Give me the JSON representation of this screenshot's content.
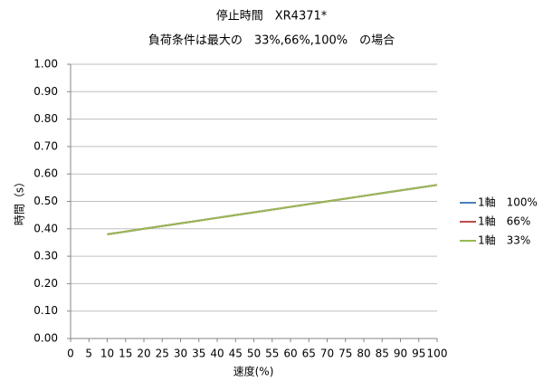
{
  "chart_data": {
    "type": "line",
    "title": "停止時間　XR4371*",
    "subtitle": "負荷条件は最大の　33%,66%,100%　の場合",
    "x_label": "速度(%)",
    "y_label": "時間（s）",
    "x": [
      10,
      15,
      20,
      25,
      30,
      35,
      40,
      45,
      50,
      55,
      60,
      65,
      70,
      75,
      80,
      85,
      90,
      95,
      100
    ],
    "series": [
      {
        "name": "1軸　100%",
        "color": "#4a7ebb",
        "values": [
          0.38,
          0.39,
          0.4,
          0.41,
          0.42,
          0.43,
          0.44,
          0.45,
          0.46,
          0.47,
          0.48,
          0.49,
          0.5,
          0.51,
          0.52,
          0.53,
          0.54,
          0.55,
          0.56
        ]
      },
      {
        "name": "1軸　66%",
        "color": "#be4b48",
        "values": [
          0.38,
          0.39,
          0.4,
          0.41,
          0.42,
          0.43,
          0.44,
          0.45,
          0.46,
          0.47,
          0.48,
          0.49,
          0.5,
          0.51,
          0.52,
          0.53,
          0.54,
          0.55,
          0.56
        ]
      },
      {
        "name": "1軸　33%",
        "color": "#98b954",
        "values": [
          0.38,
          0.39,
          0.4,
          0.41,
          0.42,
          0.43,
          0.44,
          0.45,
          0.46,
          0.47,
          0.48,
          0.49,
          0.5,
          0.51,
          0.52,
          0.53,
          0.54,
          0.55,
          0.56
        ]
      }
    ],
    "xlim": [
      0,
      100
    ],
    "xticks": [
      0,
      5,
      10,
      15,
      20,
      25,
      30,
      35,
      40,
      45,
      50,
      55,
      60,
      65,
      70,
      75,
      80,
      85,
      90,
      95,
      100
    ],
    "ylim": [
      0,
      1
    ],
    "yticks": [
      {
        "value": 0,
        "label": "0.00"
      },
      {
        "value": 0.1,
        "label": "0.10"
      },
      {
        "value": 0.2,
        "label": "0.20"
      },
      {
        "value": 0.3,
        "label": "0.30"
      },
      {
        "value": 0.4,
        "label": "0.40"
      },
      {
        "value": 0.5,
        "label": "0.50"
      },
      {
        "value": 0.6,
        "label": "0.60"
      },
      {
        "value": 0.7,
        "label": "0.70"
      },
      {
        "value": 0.8,
        "label": "0.80"
      },
      {
        "value": 0.9,
        "label": "0.90"
      },
      {
        "value": 1,
        "label": "1.00"
      }
    ],
    "grid": true,
    "legend": "right"
  }
}
